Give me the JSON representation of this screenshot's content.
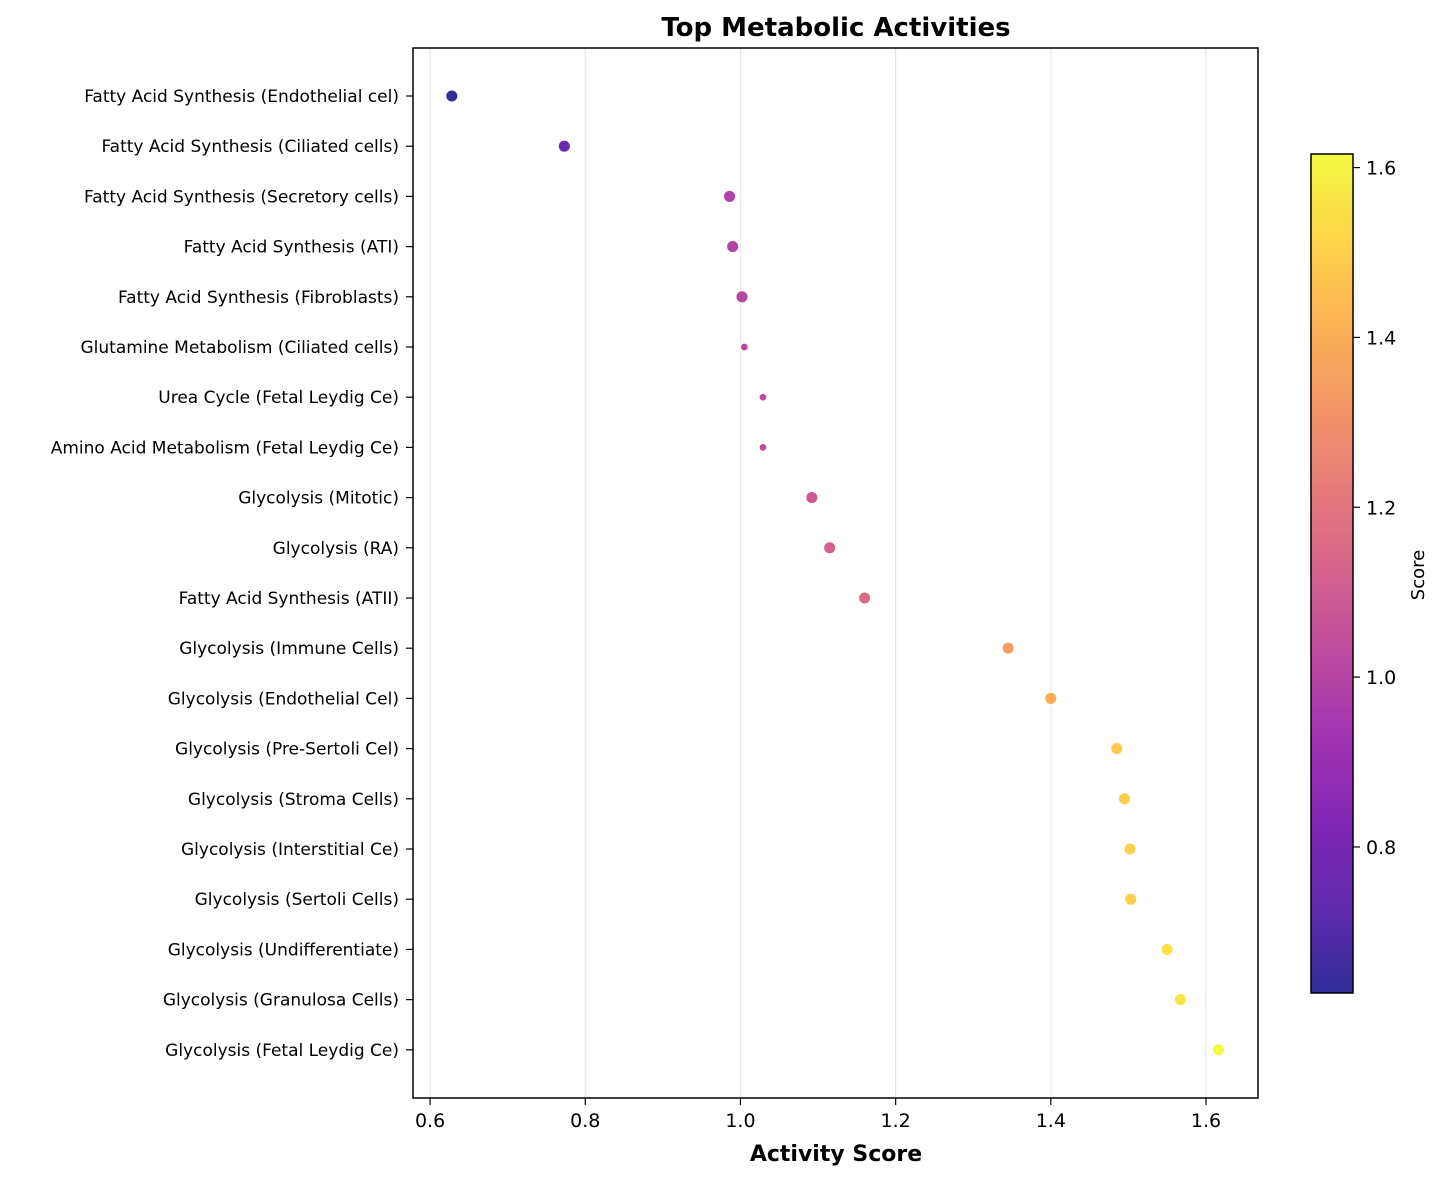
{
  "chart_data": {
    "type": "scatter",
    "title": "Top Metabolic Activities",
    "xlabel": "Activity Score",
    "xlim": [
      0.578,
      1.667
    ],
    "xticks": [
      0.6,
      0.8,
      1.0,
      1.2,
      1.4,
      1.6
    ],
    "xtick_labels": [
      "0.6",
      "0.8",
      "1.0",
      "1.2",
      "1.4",
      "1.6"
    ],
    "grid": "vertical",
    "colormap": "plasma",
    "colorbar": {
      "label": "Score",
      "range": [
        0.628,
        1.616
      ],
      "ticks": [
        0.8,
        1.0,
        1.2,
        1.4,
        1.6
      ],
      "tick_labels": [
        "0.8",
        "1.0",
        "1.2",
        "1.4",
        "1.6"
      ]
    },
    "categories": [
      "Fatty Acid Synthesis (Endothelial cel)",
      "Fatty Acid Synthesis (Ciliated cells)",
      "Fatty Acid Synthesis (Secretory cells)",
      "Fatty Acid Synthesis (ATI)",
      "Fatty Acid Synthesis (Fibroblasts)",
      "Glutamine Metabolism (Ciliated cells)",
      "Urea Cycle (Fetal Leydig Ce)",
      "Amino Acid Metabolism (Fetal Leydig Ce)",
      "Glycolysis (Mitotic)",
      "Glycolysis (RA)",
      "Fatty Acid Synthesis (ATII)",
      "Glycolysis (Immune Cells)",
      "Glycolysis (Endothelial Cel)",
      "Glycolysis (Pre-Sertoli Cel)",
      "Glycolysis (Stroma Cells)",
      "Glycolysis (Interstitial Ce)",
      "Glycolysis (Sertoli Cells)",
      "Glycolysis (Undifferentiate)",
      "Glycolysis (Granulosa Cells)",
      "Glycolysis (Fetal Leydig Ce)"
    ],
    "values": [
      0.628,
      0.773,
      0.986,
      0.99,
      1.002,
      1.005,
      1.029,
      1.029,
      1.092,
      1.115,
      1.16,
      1.345,
      1.4,
      1.485,
      1.495,
      1.502,
      1.503,
      1.55,
      1.567,
      1.616
    ],
    "marker_size": [
      "large",
      "large",
      "large",
      "large",
      "large",
      "small",
      "small",
      "small",
      "large",
      "large",
      "large",
      "large",
      "large",
      "large",
      "large",
      "large",
      "large",
      "large",
      "large",
      "large"
    ]
  }
}
